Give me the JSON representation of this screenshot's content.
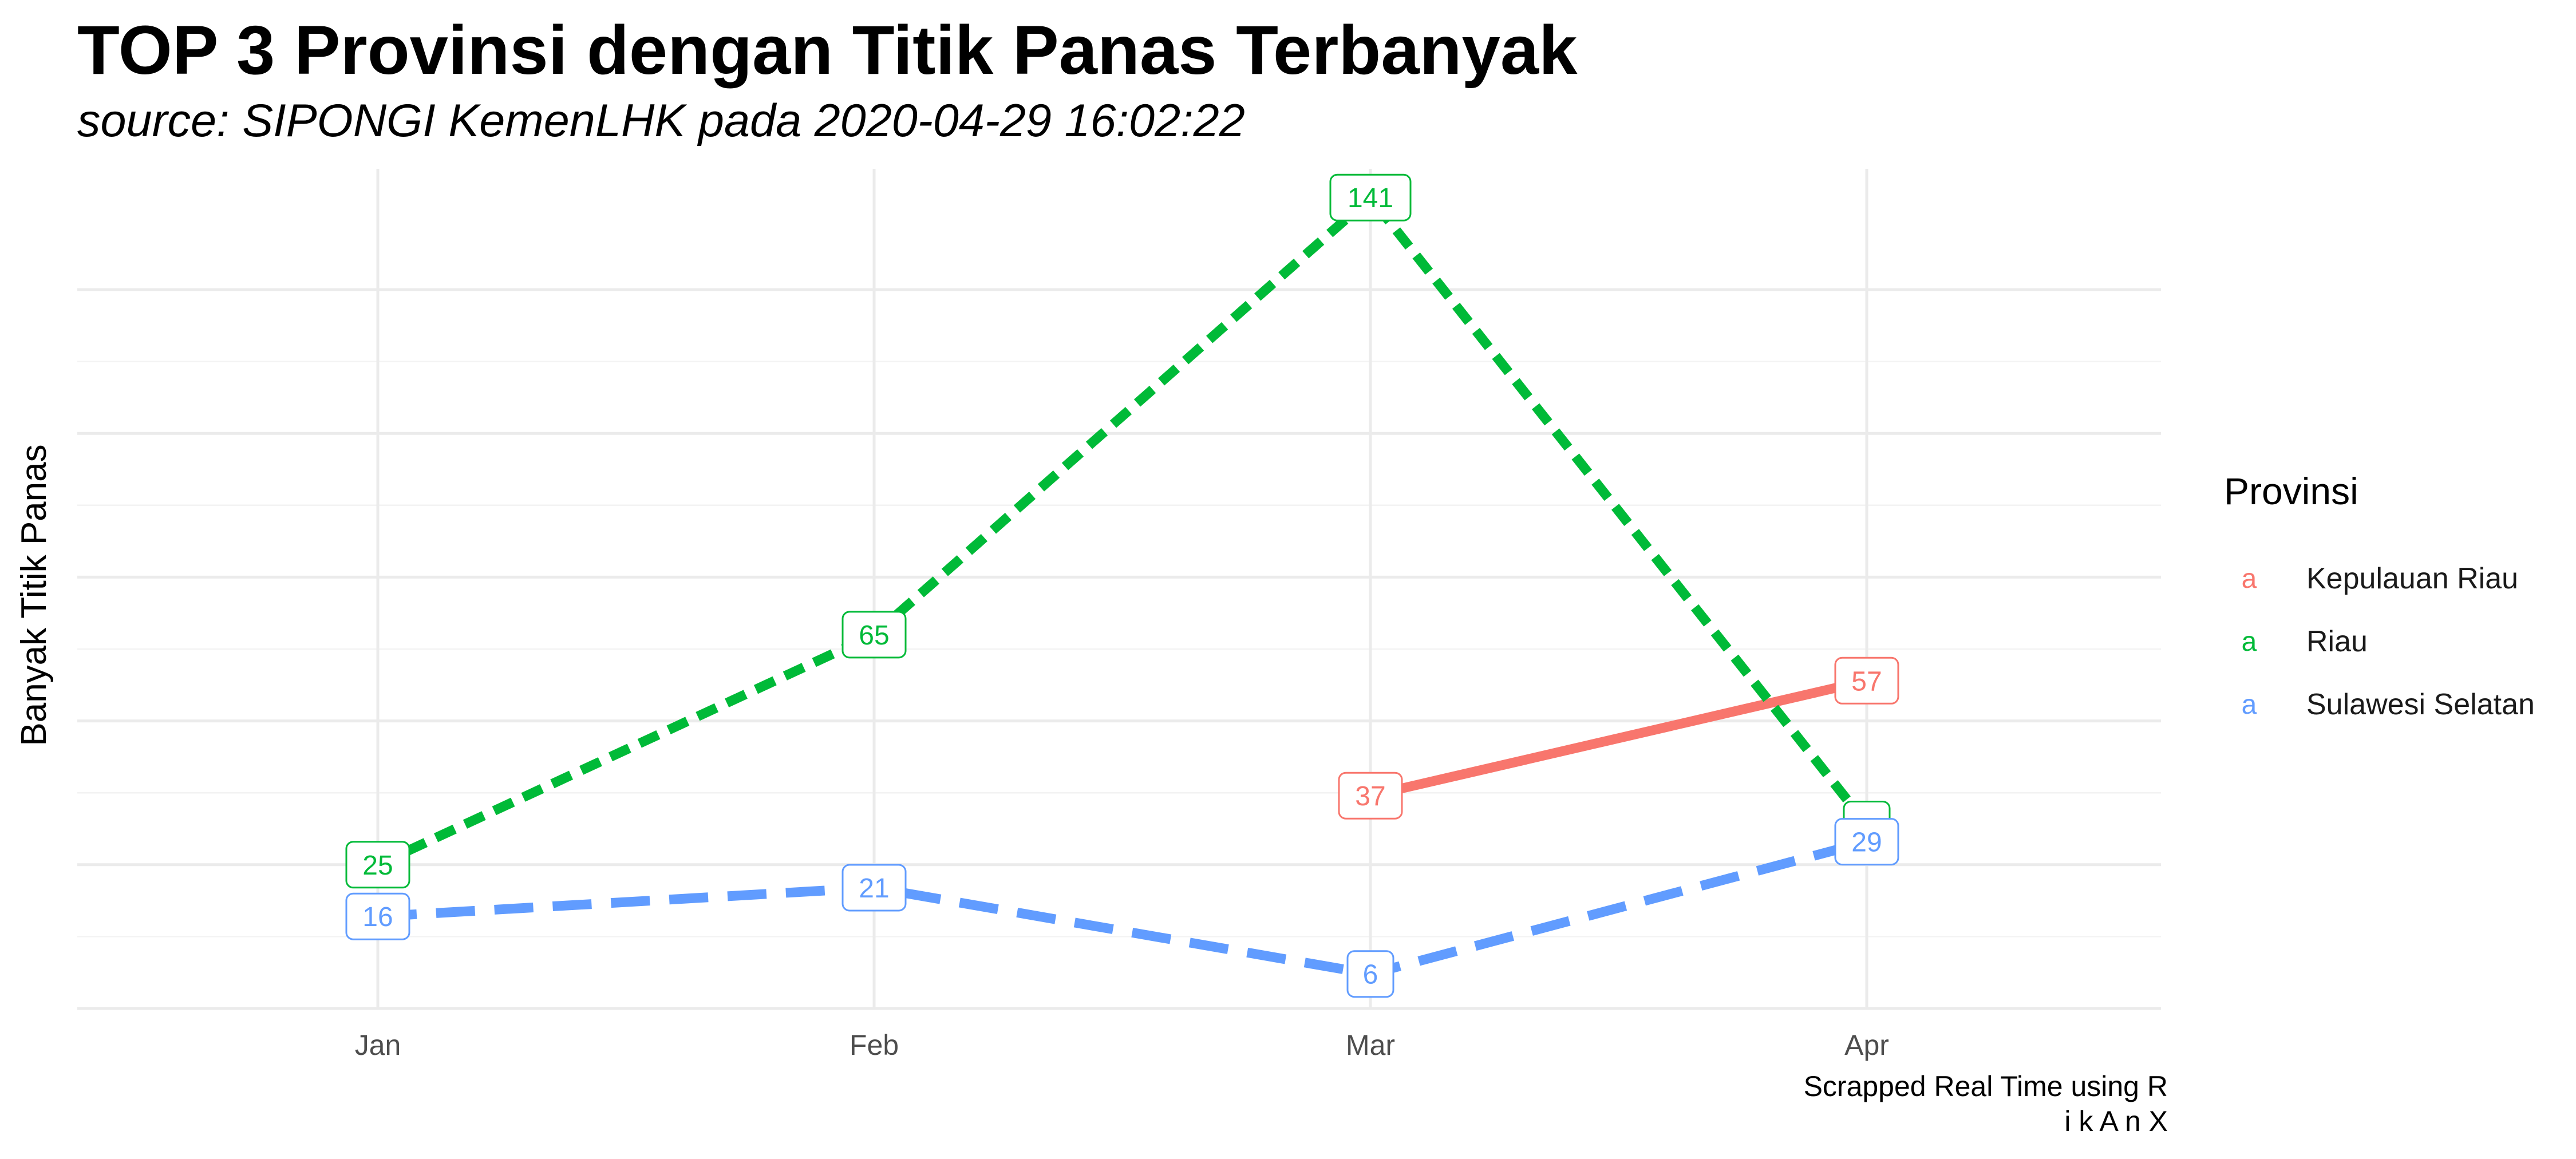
{
  "chart_data": {
    "type": "line",
    "title": "TOP 3 Provinsi dengan Titik Panas Terbanyak",
    "subtitle": "source: SIPONGI KemenLHK pada 2020-04-29 16:02:22",
    "xlabel": "",
    "ylabel": "Banyak Titik Panas",
    "categories": [
      "Jan",
      "Feb",
      "Mar",
      "Apr"
    ],
    "ylim": [
      0,
      146
    ],
    "grid": true,
    "y_tick_labels_shown": false,
    "legend": {
      "title": "Provinsi",
      "position": "right",
      "key_glyph": "a"
    },
    "series": [
      {
        "name": "Kepulauan Riau",
        "color": "#F8766D",
        "linestyle": "solid",
        "values": [
          null,
          null,
          37,
          57
        ],
        "labels": [
          "",
          "",
          "37",
          "57"
        ]
      },
      {
        "name": "Riau",
        "color": "#00BA38",
        "linestyle": "dotted",
        "values": [
          25,
          65,
          141,
          32
        ],
        "labels": [
          "25",
          "65",
          "141",
          ""
        ]
      },
      {
        "name": "Sulawesi Selatan",
        "color": "#619CFF",
        "linestyle": "dashed",
        "values": [
          16,
          21,
          6,
          29
        ],
        "labels": [
          "16",
          "21",
          "6",
          "29"
        ]
      }
    ],
    "caption": [
      "Scrapped Real Time using R",
      "i k A n X"
    ]
  }
}
